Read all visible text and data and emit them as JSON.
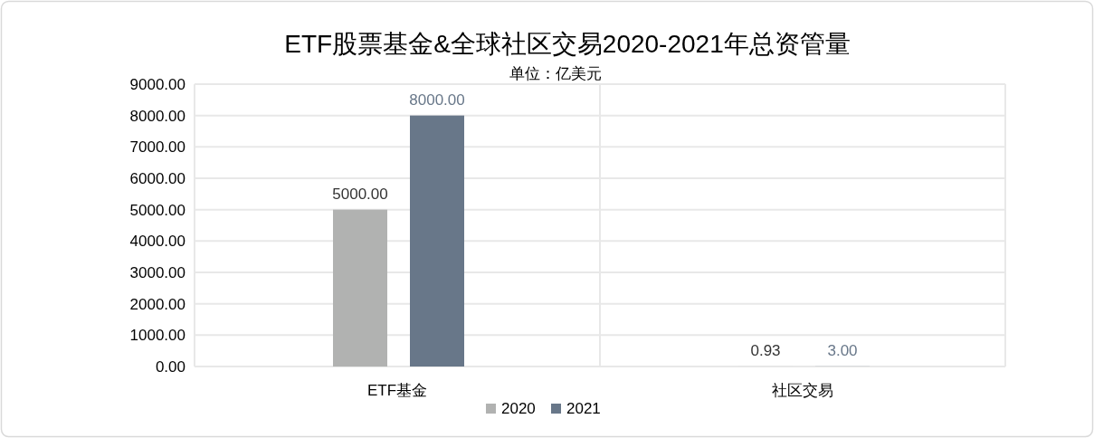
{
  "chart_data": {
    "type": "bar",
    "title": "ETF股票基金&全球社区交易2020-2021年总资管量",
    "subtitle": "单位：亿美元",
    "categories": [
      "ETF基金",
      "社区交易"
    ],
    "series": [
      {
        "name": "2020",
        "color": "#b1b2b1",
        "values": [
          5000,
          0.93
        ],
        "value_labels": [
          "5000.00",
          "0.93"
        ]
      },
      {
        "name": "2021",
        "color": "#687789",
        "values": [
          8000,
          3
        ],
        "value_labels": [
          "8000.00",
          "3.00"
        ]
      }
    ],
    "ylim": [
      0,
      9000
    ],
    "yticks": [
      {
        "value": 0,
        "label": "0.00"
      },
      {
        "value": 1000,
        "label": "1000.00"
      },
      {
        "value": 2000,
        "label": "2000.00"
      },
      {
        "value": 3000,
        "label": "3000.00"
      },
      {
        "value": 4000,
        "label": "4000.00"
      },
      {
        "value": 5000,
        "label": "5000.00"
      },
      {
        "value": 6000,
        "label": "6000.00"
      },
      {
        "value": 7000,
        "label": "7000.00"
      },
      {
        "value": 8000,
        "label": "8000.00"
      },
      {
        "value": 9000,
        "label": "9000.00"
      }
    ],
    "grid": true,
    "legend": "bottom"
  }
}
